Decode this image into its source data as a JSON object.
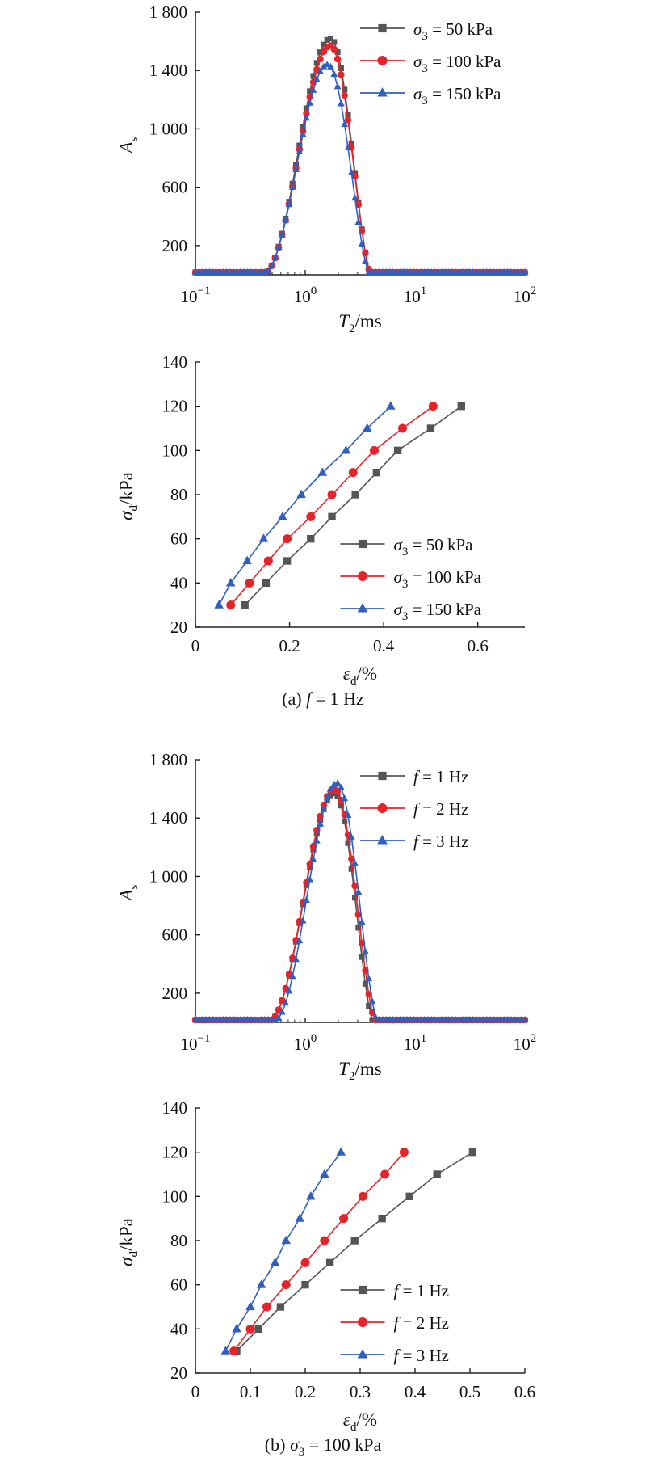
{
  "colors": {
    "black": "#555555",
    "red": "#e3242b",
    "blue": "#2f5fbf",
    "axis": "#222222"
  },
  "captions": {
    "a": "(a) f = 1 Hz",
    "b": "(b) σ3 = 100 kPa"
  },
  "chart_data": [
    {
      "id": "a-nmr",
      "type": "line",
      "xscale": "log",
      "xlim": [
        0.1,
        100
      ],
      "ylim": [
        0,
        1800
      ],
      "xlabel": "T2/ms",
      "ylabel": "As",
      "xticks": [
        "10^-1",
        "10^0",
        "10^1",
        "10^2"
      ],
      "yticks": [
        "200",
        "600",
        "1 000",
        "1 400",
        "1 800"
      ],
      "legend_position": "top-right",
      "series": [
        {
          "name": "σ3 = 50 kPa",
          "color": "black",
          "marker": "square",
          "peak_x": 1.7,
          "peak": 1620,
          "x_start": 0.4,
          "x_end": 4.0
        },
        {
          "name": "σ3 = 100 kPa",
          "color": "red",
          "marker": "circle",
          "peak_x": 1.7,
          "peak": 1570,
          "x_start": 0.4,
          "x_end": 4.0
        },
        {
          "name": "σ3 = 150 kPa",
          "color": "blue",
          "marker": "triangle",
          "peak_x": 1.6,
          "peak": 1440,
          "x_start": 0.4,
          "x_end": 3.9
        }
      ]
    },
    {
      "id": "a-stress",
      "type": "line",
      "xlim": [
        0,
        0.7
      ],
      "ylim": [
        20,
        140
      ],
      "xlabel": "εd/%",
      "ylabel": "σd/kPa",
      "xticks": [
        "0",
        "0.2",
        "0.4",
        "0.6"
      ],
      "yticks": [
        "20",
        "40",
        "60",
        "80",
        "100",
        "120",
        "140"
      ],
      "legend_position": "bottom-right",
      "y": [
        30,
        40,
        50,
        60,
        70,
        80,
        90,
        100,
        110,
        120
      ],
      "series": [
        {
          "name": "σ3 = 50 kPa",
          "color": "black",
          "marker": "square",
          "x": [
            0.105,
            0.15,
            0.195,
            0.245,
            0.29,
            0.34,
            0.385,
            0.43,
            0.5,
            0.565
          ]
        },
        {
          "name": "σ3 = 100 kPa",
          "color": "red",
          "marker": "circle",
          "x": [
            0.075,
            0.115,
            0.155,
            0.195,
            0.245,
            0.29,
            0.335,
            0.38,
            0.44,
            0.505
          ]
        },
        {
          "name": "σ3 = 150 kPa",
          "color": "blue",
          "marker": "triangle",
          "x": [
            0.05,
            0.075,
            0.11,
            0.145,
            0.185,
            0.225,
            0.27,
            0.32,
            0.365,
            0.415
          ]
        }
      ]
    },
    {
      "id": "b-nmr",
      "type": "line",
      "xscale": "log",
      "xlim": [
        0.1,
        100
      ],
      "ylim": [
        0,
        1800
      ],
      "xlabel": "T2/ms",
      "ylabel": "As",
      "xticks": [
        "10^-1",
        "10^0",
        "10^1",
        "10^2"
      ],
      "yticks": [
        "200",
        "600",
        "1 000",
        "1 400",
        "1 800"
      ],
      "legend_position": "top-right",
      "series": [
        {
          "name": "f = 1 Hz",
          "color": "black",
          "marker": "square",
          "peak_x": 1.85,
          "peak": 1570,
          "x_start": 0.45,
          "x_end": 4.2
        },
        {
          "name": "f = 2 Hz",
          "color": "red",
          "marker": "circle",
          "peak_x": 1.85,
          "peak": 1600,
          "x_start": 0.45,
          "x_end": 4.4
        },
        {
          "name": "f = 3 Hz",
          "color": "blue",
          "marker": "triangle",
          "peak_x": 1.95,
          "peak": 1640,
          "x_start": 0.5,
          "x_end": 4.6
        }
      ]
    },
    {
      "id": "b-stress",
      "type": "line",
      "xlim": [
        0,
        0.6
      ],
      "ylim": [
        20,
        140
      ],
      "xlabel": "εd/%",
      "ylabel": "σd/kPa",
      "xticks": [
        "0",
        "0.1",
        "0.2",
        "0.3",
        "0.4",
        "0.5",
        "0.6"
      ],
      "yticks": [
        "20",
        "40",
        "60",
        "80",
        "100",
        "120",
        "140"
      ],
      "legend_position": "bottom-right",
      "y": [
        30,
        40,
        50,
        60,
        70,
        80,
        90,
        100,
        110,
        120
      ],
      "series": [
        {
          "name": "f = 1 Hz",
          "color": "black",
          "marker": "square",
          "x": [
            0.075,
            0.115,
            0.155,
            0.2,
            0.245,
            0.29,
            0.34,
            0.39,
            0.44,
            0.505
          ]
        },
        {
          "name": "f = 2 Hz",
          "color": "red",
          "marker": "circle",
          "x": [
            0.07,
            0.1,
            0.13,
            0.165,
            0.2,
            0.235,
            0.27,
            0.305,
            0.345,
            0.38
          ]
        },
        {
          "name": "f = 3 Hz",
          "color": "blue",
          "marker": "triangle",
          "x": [
            0.055,
            0.075,
            0.1,
            0.12,
            0.145,
            0.165,
            0.19,
            0.21,
            0.235,
            0.265
          ]
        }
      ]
    }
  ]
}
